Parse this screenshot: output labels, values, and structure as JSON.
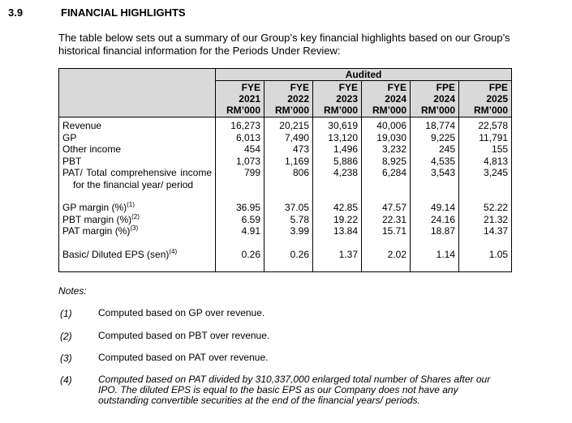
{
  "section": {
    "number": "3.9",
    "title": "FINANCIAL HIGHLIGHTS"
  },
  "intro": "The table below sets out a summary of our Group’s key financial highlights based on our Group’s historical financial information for the Periods Under Review:",
  "table": {
    "group_header": "Audited",
    "columns": [
      {
        "period": "FYE",
        "year": "2021",
        "unit": "RM’000"
      },
      {
        "period": "FYE",
        "year": "2022",
        "unit": "RM’000"
      },
      {
        "period": "FYE",
        "year": "2023",
        "unit": "RM’000"
      },
      {
        "period": "FYE",
        "year": "2024",
        "unit": "RM’000"
      },
      {
        "period": "FPE",
        "year": "2024",
        "unit": "RM’000"
      },
      {
        "period": "FPE",
        "year": "2025",
        "unit": "RM’000"
      }
    ],
    "blocks": [
      [
        {
          "label": "Revenue",
          "values": [
            "16,273",
            "20,215",
            "30,619",
            "40,006",
            "18,774",
            "22,578"
          ]
        },
        {
          "label": "GP",
          "values": [
            "6,013",
            "7,490",
            "13,120",
            "19,030",
            "9,225",
            "11,791"
          ]
        },
        {
          "label": "Other income",
          "values": [
            "454",
            "473",
            "1,496",
            "3,232",
            "245",
            "155"
          ]
        },
        {
          "label": "PBT",
          "values": [
            "1,073",
            "1,169",
            "5,886",
            "8,925",
            "4,535",
            "4,813"
          ]
        },
        {
          "label": "PAT/ Total comprehensive income for the financial year/ period",
          "values": [
            "799",
            "806",
            "4,238",
            "6,284",
            "3,543",
            "3,245"
          ]
        }
      ],
      [
        {
          "label": "GP margin (%)",
          "note": "(1)",
          "values": [
            "36.95",
            "37.05",
            "42.85",
            "47.57",
            "49.14",
            "52.22"
          ]
        },
        {
          "label": "PBT margin (%)",
          "note": "(2)",
          "values": [
            "6.59",
            "5.78",
            "19.22",
            "22.31",
            "24.16",
            "21.32"
          ]
        },
        {
          "label": "PAT margin (%)",
          "note": "(3)",
          "values": [
            "4.91",
            "3.99",
            "13.84",
            "15.71",
            "18.87",
            "14.37"
          ]
        }
      ],
      [
        {
          "label": "Basic/ Diluted EPS (sen)",
          "note": "(4)",
          "values": [
            "0.26",
            "0.26",
            "1.37",
            "2.02",
            "1.14",
            "1.05"
          ]
        }
      ]
    ]
  },
  "notes": {
    "title": "Notes:",
    "items": [
      {
        "marker": "(1)",
        "text": "Computed based on GP over revenue."
      },
      {
        "marker": "(2)",
        "text": "Computed based on PBT over revenue."
      },
      {
        "marker": "(3)",
        "text": "Computed based on PAT over revenue."
      },
      {
        "marker": "(4)",
        "text": "Computed based on PAT divided by 310,337,000 enlarged total number of Shares after our IPO. The diluted EPS is equal to the basic EPS as our Company does not have any outstanding convertible securities at the end of the financial years/ periods."
      }
    ]
  }
}
